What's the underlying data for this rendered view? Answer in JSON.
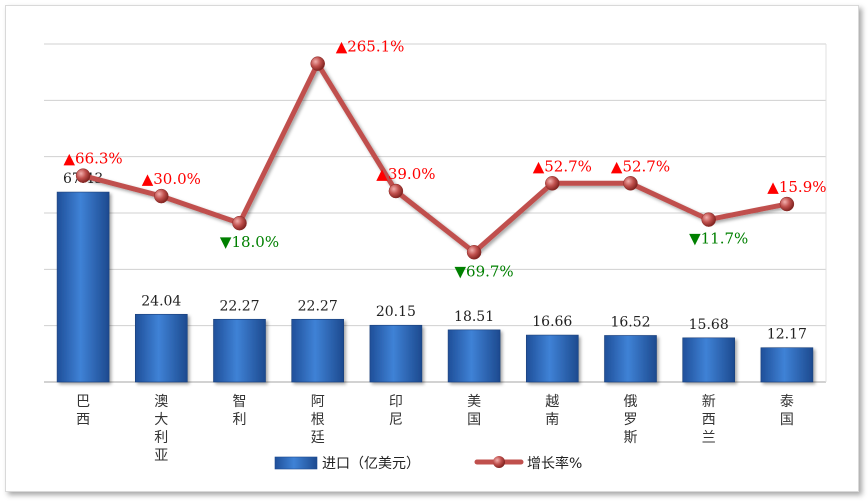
{
  "chart_data": {
    "type": "bar",
    "categories": [
      "巴西",
      "澳大利亚",
      "智利",
      "阿根廷",
      "印尼",
      "美国",
      "越南",
      "俄罗斯",
      "新西兰",
      "泰国"
    ],
    "series": [
      {
        "name": "进口（亿美元）",
        "type": "bar",
        "axis": "left",
        "values": [
          67.43,
          24.04,
          22.27,
          22.27,
          20.15,
          18.51,
          16.66,
          16.52,
          15.68,
          12.17
        ],
        "labels": [
          "67.43",
          "24.04",
          "22.27",
          "22.27",
          "20.15",
          "18.51",
          "16.66",
          "16.52",
          "15.68",
          "12.17"
        ],
        "color": "#2f6cc0"
      },
      {
        "name": "增长率%",
        "type": "line",
        "axis": "right",
        "values": [
          66.3,
          30.0,
          -18.0,
          265.1,
          39.0,
          -69.7,
          52.7,
          52.7,
          -11.7,
          15.9
        ],
        "labels": [
          "▲66.3%",
          "▲30.0%",
          "▼18.0%",
          "▲265.1%",
          "▲39.0%",
          "▼69.7%",
          "▲52.7%",
          "▲52.7%",
          "▼11.7%",
          "▲15.9%"
        ],
        "color": "#c0504d"
      }
    ],
    "left_axis": {
      "range": [
        0,
        120
      ],
      "grid_step": 20,
      "tick_labels_visible": false
    },
    "right_axis": {
      "range": [
        -300,
        300
      ],
      "visible": false
    },
    "grid": true,
    "legend": {
      "position": "bottom"
    },
    "colors": {
      "up": "#ff0000",
      "down": "#008000"
    }
  }
}
